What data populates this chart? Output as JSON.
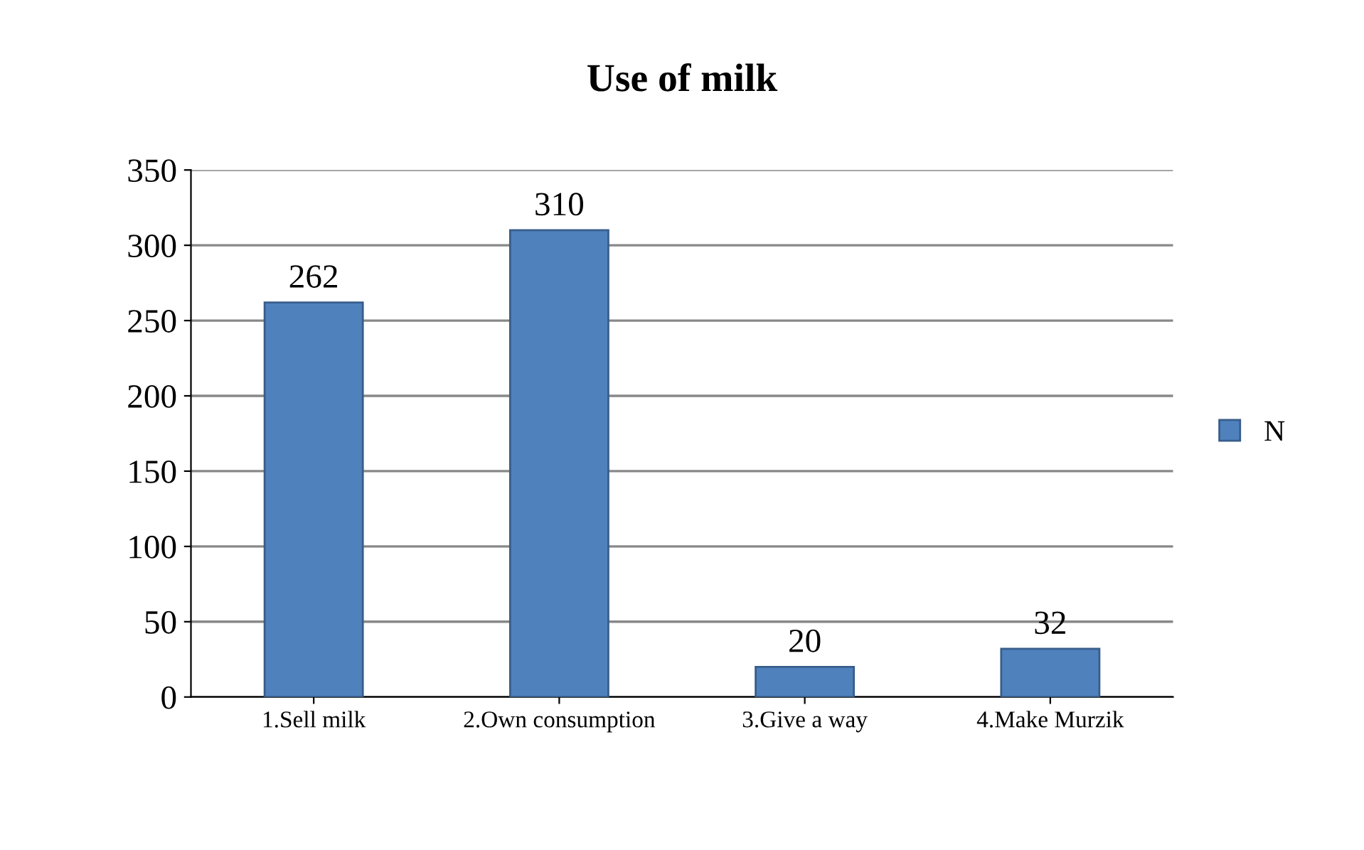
{
  "chart_data": {
    "type": "bar",
    "title": "Use of milk",
    "categories": [
      "1.Sell milk",
      "2.Own consumption",
      "3.Give a way",
      "4.Make Murzik"
    ],
    "series": [
      {
        "name": "N",
        "color": "#4f81bd",
        "values": [
          262,
          310,
          20,
          32
        ]
      }
    ],
    "ylim": [
      0,
      350
    ],
    "yticks": [
      0,
      50,
      100,
      150,
      200,
      250,
      300,
      350
    ],
    "grid": "y",
    "legend": "right",
    "data_labels": true
  }
}
